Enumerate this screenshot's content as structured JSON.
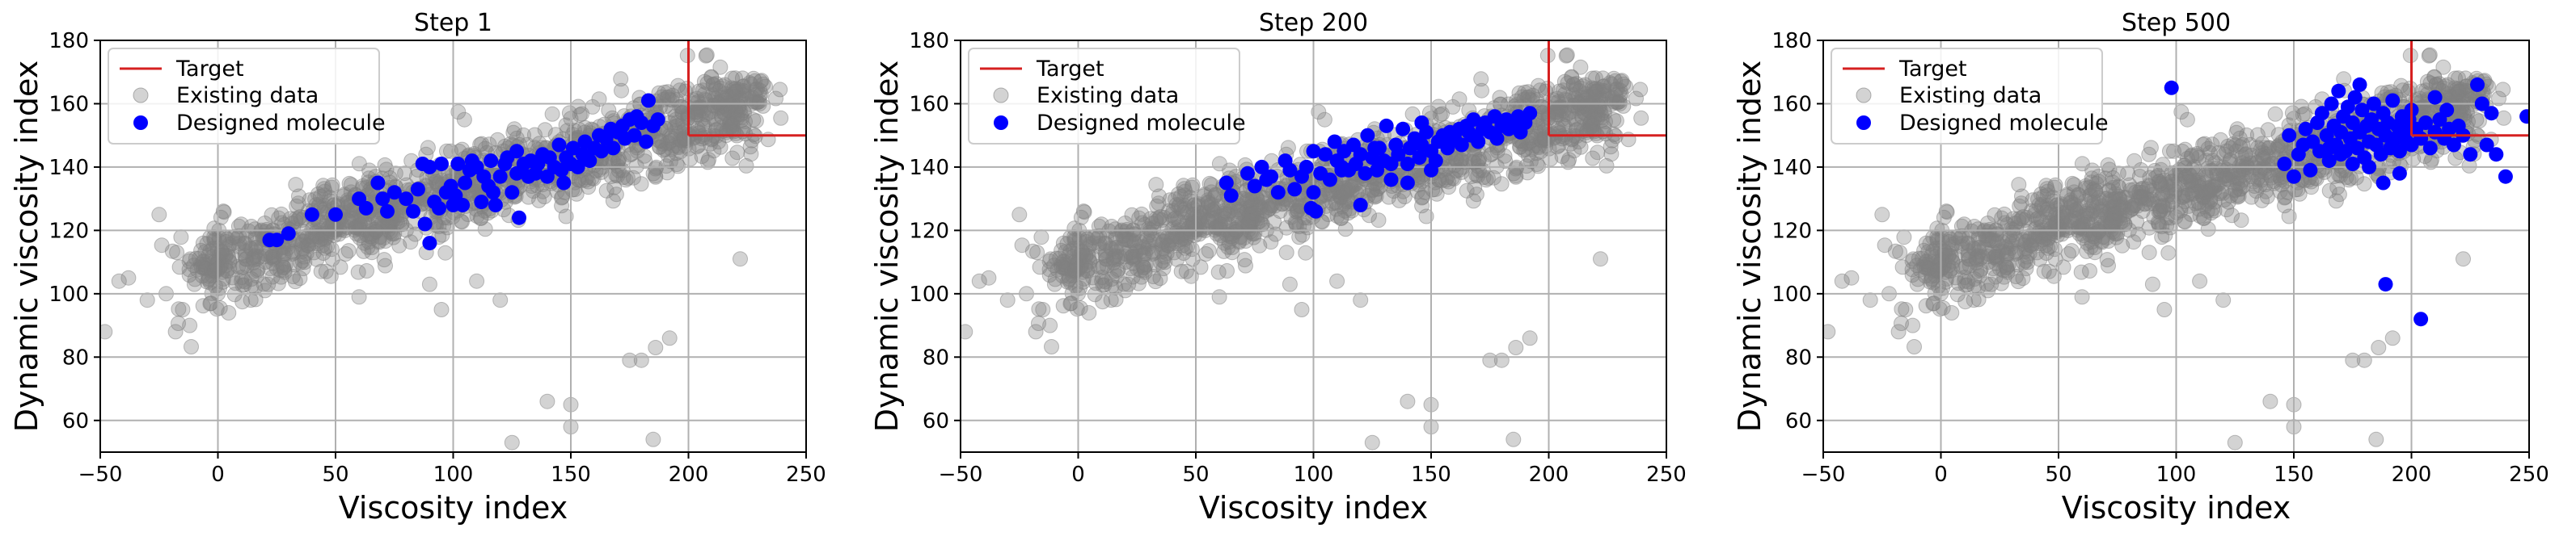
{
  "chart_data": [
    {
      "type": "scatter",
      "title": "Step 1",
      "xlabel": "Viscosity index",
      "ylabel": "Dynamic viscosity index",
      "xlim": [
        -50,
        250
      ],
      "ylim": [
        50,
        180
      ],
      "xticks": [
        -50,
        0,
        50,
        100,
        150,
        200,
        250
      ],
      "yticks": [
        60,
        80,
        100,
        120,
        140,
        160,
        180
      ],
      "grid": true,
      "legend": {
        "position": "top-left",
        "entries": [
          "Target",
          "Existing data",
          "Designed molecule"
        ]
      },
      "target_region": {
        "x_min": 200,
        "y_min": 150
      },
      "series": [
        {
          "name": "Existing data",
          "color": "#808080",
          "points": []
        },
        {
          "name": "Designed molecule",
          "color": "#0000ff",
          "points": [
            [
              22,
              117
            ],
            [
              25,
              117
            ],
            [
              30,
              119
            ],
            [
              40,
              125
            ],
            [
              50,
              125
            ],
            [
              60,
              130
            ],
            [
              63,
              127
            ],
            [
              68,
              135
            ],
            [
              70,
              130
            ],
            [
              72,
              126
            ],
            [
              75,
              132
            ],
            [
              80,
              130
            ],
            [
              83,
              126
            ],
            [
              85,
              133
            ],
            [
              87,
              141
            ],
            [
              88,
              122
            ],
            [
              90,
              116
            ],
            [
              92,
              129
            ],
            [
              94,
              127
            ],
            [
              95,
              141
            ],
            [
              97,
              132
            ],
            [
              99,
              134
            ],
            [
              101,
              131
            ],
            [
              102,
              141
            ],
            [
              104,
              128
            ],
            [
              105,
              135
            ],
            [
              107,
              139
            ],
            [
              108,
              142
            ],
            [
              110,
              140
            ],
            [
              112,
              129
            ],
            [
              113,
              137
            ],
            [
              115,
              134
            ],
            [
              116,
              142
            ],
            [
              118,
              128
            ],
            [
              120,
              137
            ],
            [
              122,
              141
            ],
            [
              123,
              143
            ],
            [
              125,
              132
            ],
            [
              127,
              138
            ],
            [
              128,
              124
            ],
            [
              130,
              141
            ],
            [
              132,
              137
            ],
            [
              133,
              142
            ],
            [
              135,
              138
            ],
            [
              136,
              141
            ],
            [
              138,
              144
            ],
            [
              140,
              137
            ],
            [
              141,
              143
            ],
            [
              143,
              140
            ],
            [
              145,
              147
            ],
            [
              146,
              139
            ],
            [
              148,
              143
            ],
            [
              150,
              141
            ],
            [
              151,
              146
            ],
            [
              153,
              140
            ],
            [
              155,
              144
            ],
            [
              156,
              148
            ],
            [
              158,
              142
            ],
            [
              160,
              146
            ],
            [
              162,
              150
            ],
            [
              163,
              145
            ],
            [
              165,
              149
            ],
            [
              167,
              152
            ],
            [
              168,
              146
            ],
            [
              170,
              151
            ],
            [
              172,
              153
            ],
            [
              173,
              149
            ],
            [
              175,
              155
            ],
            [
              177,
              150
            ],
            [
              178,
              156
            ],
            [
              180,
              154
            ],
            [
              182,
              148
            ],
            [
              183,
              161
            ],
            [
              185,
              153
            ],
            [
              187,
              155
            ],
            [
              90,
              140
            ],
            [
              100,
              128
            ],
            [
              117,
              132
            ],
            [
              127,
              145
            ],
            [
              147,
              135
            ]
          ]
        }
      ]
    },
    {
      "type": "scatter",
      "title": "Step 200",
      "xlabel": "Viscosity index",
      "ylabel": "Dynamic viscosity index",
      "xlim": [
        -50,
        250
      ],
      "ylim": [
        50,
        180
      ],
      "xticks": [
        -50,
        0,
        50,
        100,
        150,
        200,
        250
      ],
      "yticks": [
        60,
        80,
        100,
        120,
        140,
        160,
        180
      ],
      "grid": true,
      "legend": {
        "position": "top-left",
        "entries": [
          "Target",
          "Existing data",
          "Designed molecule"
        ]
      },
      "target_region": {
        "x_min": 200,
        "y_min": 150
      },
      "series": [
        {
          "name": "Existing data",
          "color": "#808080",
          "points": []
        },
        {
          "name": "Designed molecule",
          "color": "#0000ff",
          "points": [
            [
              63,
              135
            ],
            [
              65,
              131
            ],
            [
              72,
              138
            ],
            [
              75,
              134
            ],
            [
              78,
              140
            ],
            [
              80,
              136
            ],
            [
              82,
              137
            ],
            [
              85,
              132
            ],
            [
              88,
              142
            ],
            [
              90,
              139
            ],
            [
              92,
              133
            ],
            [
              95,
              137
            ],
            [
              97,
              140
            ],
            [
              99,
              127
            ],
            [
              100,
              132
            ],
            [
              101,
              126
            ],
            [
              103,
              138
            ],
            [
              105,
              144
            ],
            [
              107,
              136
            ],
            [
              109,
              148
            ],
            [
              110,
              142
            ],
            [
              112,
              139
            ],
            [
              113,
              145
            ],
            [
              115,
              139
            ],
            [
              117,
              147
            ],
            [
              118,
              141
            ],
            [
              120,
              144
            ],
            [
              122,
              138
            ],
            [
              123,
              150
            ],
            [
              125,
              143
            ],
            [
              127,
              139
            ],
            [
              128,
              146
            ],
            [
              130,
              142
            ],
            [
              131,
              153
            ],
            [
              133,
              141
            ],
            [
              135,
              147
            ],
            [
              136,
              144
            ],
            [
              138,
              152
            ],
            [
              140,
              141
            ],
            [
              141,
              146
            ],
            [
              143,
              149
            ],
            [
              145,
              143
            ],
            [
              146,
              147
            ],
            [
              148,
              151
            ],
            [
              150,
              145
            ],
            [
              152,
              142
            ],
            [
              153,
              148
            ],
            [
              155,
              150
            ],
            [
              157,
              146
            ],
            [
              158,
              151
            ],
            [
              160,
              149
            ],
            [
              162,
              152
            ],
            [
              163,
              147
            ],
            [
              165,
              153
            ],
            [
              167,
              150
            ],
            [
              168,
              155
            ],
            [
              170,
              148
            ],
            [
              172,
              152
            ],
            [
              173,
              154
            ],
            [
              175,
              151
            ],
            [
              177,
              156
            ],
            [
              178,
              149
            ],
            [
              180,
              153
            ],
            [
              182,
              155
            ],
            [
              183,
              152
            ],
            [
              185,
              154
            ],
            [
              187,
              156
            ],
            [
              188,
              151
            ],
            [
              190,
              154
            ],
            [
              192,
              157
            ],
            [
              120,
              128
            ],
            [
              133,
              136
            ],
            [
              140,
              135
            ],
            [
              126,
              146
            ],
            [
              146,
              154
            ],
            [
              158,
              148
            ],
            [
              112,
              140
            ],
            [
              100,
              145
            ],
            [
              150,
              139
            ],
            [
              166,
              151
            ]
          ]
        }
      ]
    },
    {
      "type": "scatter",
      "title": "Step 500",
      "xlabel": "Viscosity index",
      "ylabel": "Dynamic viscosity index",
      "xlim": [
        -50,
        250
      ],
      "ylim": [
        50,
        180
      ],
      "xticks": [
        -50,
        0,
        50,
        100,
        150,
        200,
        250
      ],
      "yticks": [
        60,
        80,
        100,
        120,
        140,
        160,
        180
      ],
      "grid": true,
      "legend": {
        "position": "top-left",
        "entries": [
          "Target",
          "Existing data",
          "Designed molecule"
        ]
      },
      "target_region": {
        "x_min": 200,
        "y_min": 150
      },
      "series": [
        {
          "name": "Existing data",
          "color": "#808080",
          "points": []
        },
        {
          "name": "Designed molecule",
          "color": "#0000ff",
          "points": [
            [
              98,
              165
            ],
            [
              146,
              141
            ],
            [
              148,
              150
            ],
            [
              150,
              137
            ],
            [
              152,
              144
            ],
            [
              154,
              147
            ],
            [
              155,
              152
            ],
            [
              157,
              139
            ],
            [
              158,
              148
            ],
            [
              160,
              154
            ],
            [
              161,
              145
            ],
            [
              162,
              157
            ],
            [
              164,
              150
            ],
            [
              165,
              142
            ],
            [
              166,
              160
            ],
            [
              167,
              153
            ],
            [
              168,
              147
            ],
            [
              169,
              164
            ],
            [
              170,
              151
            ],
            [
              171,
              156
            ],
            [
              172,
              145
            ],
            [
              173,
              159
            ],
            [
              174,
              149
            ],
            [
              175,
              154
            ],
            [
              176,
              162
            ],
            [
              177,
              146
            ],
            [
              178,
              151
            ],
            [
              179,
              158
            ],
            [
              180,
              143
            ],
            [
              181,
              153
            ],
            [
              182,
              148
            ],
            [
              183,
              155
            ],
            [
              184,
              160
            ],
            [
              185,
              147
            ],
            [
              186,
              152
            ],
            [
              187,
              144
            ],
            [
              188,
              157
            ],
            [
              189,
              150
            ],
            [
              190,
              154
            ],
            [
              191,
              146
            ],
            [
              192,
              161
            ],
            [
              193,
              149
            ],
            [
              194,
              153
            ],
            [
              195,
              145
            ],
            [
              196,
              156
            ],
            [
              197,
              151
            ],
            [
              198,
              148
            ],
            [
              199,
              155
            ],
            [
              200,
              147
            ],
            [
              202,
              152
            ],
            [
              204,
              149
            ],
            [
              206,
              154
            ],
            [
              208,
              146
            ],
            [
              210,
              151
            ],
            [
              212,
              155
            ],
            [
              214,
              149
            ],
            [
              216,
              152
            ],
            [
              218,
              147
            ],
            [
              220,
              153
            ],
            [
              222,
              150
            ],
            [
              225,
              144
            ],
            [
              228,
              166
            ],
            [
              230,
              160
            ],
            [
              232,
              147
            ],
            [
              234,
              157
            ],
            [
              236,
              144
            ],
            [
              240,
              137
            ],
            [
              249,
              156
            ],
            [
              188,
              135
            ],
            [
              182,
              140
            ],
            [
              175,
              141
            ],
            [
              170,
              144
            ],
            [
              165,
              146
            ],
            [
              200,
              158
            ],
            [
              210,
              162
            ],
            [
              215,
              158
            ],
            [
              189,
              103
            ],
            [
              204,
              92
            ],
            [
              195,
              138
            ],
            [
              178,
              166
            ]
          ]
        }
      ]
    }
  ]
}
